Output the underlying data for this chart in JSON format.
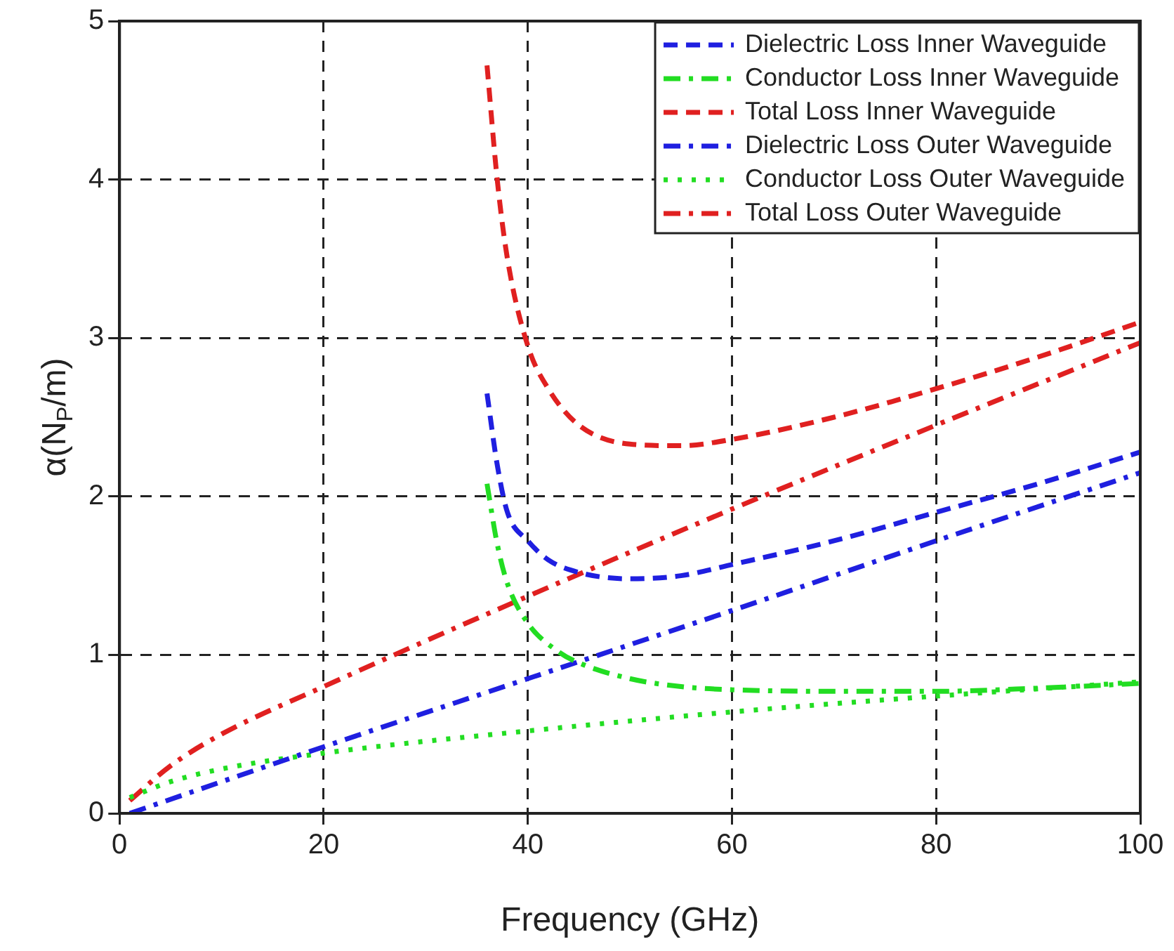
{
  "chart_data": {
    "type": "line",
    "xlabel": "Frequency (GHz)",
    "ylabel": "α(N$_{P}$/m)",
    "xlim": [
      0,
      100
    ],
    "xticks": [
      0,
      20,
      40,
      60,
      80,
      100
    ],
    "ylim": [
      0,
      5
    ],
    "yticks": [
      0,
      1,
      2,
      3,
      4,
      5
    ],
    "grid": true,
    "legend": "top right",
    "marker": "none",
    "series": [
      {
        "name": "Dielectric Loss Inner Waveguide",
        "color": "#1f1fe0",
        "line_style": "dashed",
        "x": [
          36,
          37,
          38,
          40,
          42,
          45,
          50,
          55,
          60,
          70,
          80,
          90,
          100
        ],
        "values": [
          2.65,
          2.2,
          1.9,
          1.72,
          1.6,
          1.52,
          1.48,
          1.5,
          1.57,
          1.72,
          1.9,
          2.08,
          2.28
        ]
      },
      {
        "name": "Conductor Loss Inner Waveguide",
        "color": "#22dd22",
        "line_style": "dashdot",
        "x": [
          36,
          37,
          38,
          40,
          43,
          45,
          50,
          55,
          60,
          70,
          80,
          90,
          100
        ],
        "values": [
          2.08,
          1.7,
          1.45,
          1.2,
          1.02,
          0.95,
          0.85,
          0.8,
          0.78,
          0.77,
          0.77,
          0.79,
          0.82
        ]
      },
      {
        "name": "Total Loss Inner Waveguide",
        "color": "#e02020",
        "line_style": "dashed",
        "x": [
          36,
          37,
          38,
          40,
          42,
          45,
          50,
          55,
          60,
          70,
          80,
          90,
          100
        ],
        "values": [
          4.72,
          4.0,
          3.5,
          2.95,
          2.68,
          2.45,
          2.33,
          2.32,
          2.36,
          2.5,
          2.68,
          2.88,
          3.1
        ]
      },
      {
        "name": "Dielectric Loss Outer Waveguide",
        "color": "#1f1fe0",
        "line_style": "dashdot",
        "x": [
          1,
          20,
          40,
          60,
          80,
          100
        ],
        "values": [
          0,
          0.42,
          0.85,
          1.28,
          1.72,
          2.15
        ]
      },
      {
        "name": "Conductor Loss Outer Waveguide",
        "color": "#22dd22",
        "line_style": "dotted",
        "x": [
          1,
          5,
          10,
          20,
          40,
          60,
          80,
          100
        ],
        "values": [
          0.1,
          0.2,
          0.28,
          0.38,
          0.52,
          0.64,
          0.74,
          0.83
        ]
      },
      {
        "name": "Total Loss Outer Waveguide",
        "color": "#e02020",
        "line_style": "dashdot",
        "x": [
          1,
          5,
          10,
          20,
          40,
          60,
          80,
          100
        ],
        "values": [
          0.08,
          0.3,
          0.5,
          0.8,
          1.37,
          1.92,
          2.45,
          2.97
        ]
      }
    ]
  }
}
